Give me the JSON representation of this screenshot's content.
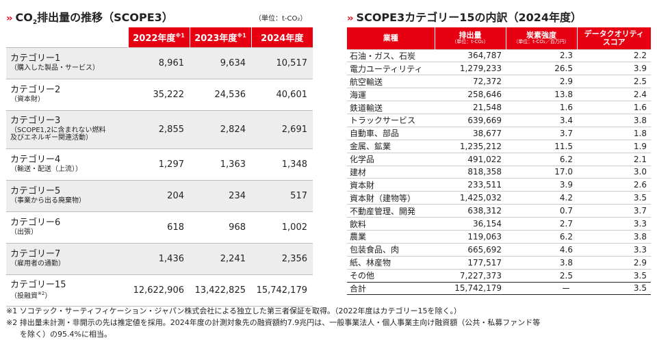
{
  "left": {
    "title_prefix": "CO",
    "title_sub": "2",
    "title_rest": "排出量の推移（SCOPE3）",
    "unit": "（単位：t-CO₂）",
    "headers": [
      {
        "label": "2022年度",
        "sup": "※1"
      },
      {
        "label": "2023年度",
        "sup": "※1"
      },
      {
        "label": "2024年度",
        "sup": ""
      }
    ],
    "rows": [
      {
        "label": "カテゴリー1",
        "sub": "（購入した製品・サービス）",
        "values": [
          "8,961",
          "9,634",
          "10,517"
        ]
      },
      {
        "label": "カテゴリー2",
        "sub": "（資本財）",
        "values": [
          "35,222",
          "24,536",
          "40,601"
        ]
      },
      {
        "label": "カテゴリー3",
        "sub": "（SCOPE1,2に含まれない燃料",
        "sub2": "及びエネルギー関連活動）",
        "values": [
          "2,855",
          "2,824",
          "2,691"
        ]
      },
      {
        "label": "カテゴリー4",
        "sub": "（輸送・配送（上流））",
        "values": [
          "1,297",
          "1,363",
          "1,348"
        ]
      },
      {
        "label": "カテゴリー5",
        "sub": "（事業から出る廃棄物）",
        "values": [
          "204",
          "234",
          "517"
        ]
      },
      {
        "label": "カテゴリー6",
        "sub": "（出張）",
        "values": [
          "618",
          "968",
          "1,002"
        ]
      },
      {
        "label": "カテゴリー7",
        "sub": "（雇用者の通勤）",
        "values": [
          "1,436",
          "2,241",
          "2,356"
        ]
      },
      {
        "label": "カテゴリー15",
        "sub": "（投融資",
        "sub_sup": "※2",
        "sub_end": "）",
        "values": [
          "12,622,906",
          "13,422,825",
          "15,742,179"
        ]
      }
    ]
  },
  "right": {
    "title": "SCOPE3カテゴリー15の内訳（2024年度）",
    "headers": [
      {
        "label": "業種",
        "sub": ""
      },
      {
        "label": "排出量",
        "sub": "（単位：t-CO₂）"
      },
      {
        "label": "炭素強度",
        "sub": "（単位：t-CO₂／百万円）"
      },
      {
        "label": "データクオリティ",
        "sub": "",
        "label2": "スコア"
      }
    ],
    "rows": [
      [
        "石油・ガス、石炭",
        "364,787",
        "2.3",
        "2.2"
      ],
      [
        "電力ユーティリティ",
        "1,279,233",
        "26.5",
        "3.9"
      ],
      [
        "航空輸送",
        "72,372",
        "2.9",
        "2.5"
      ],
      [
        "海運",
        "258,646",
        "13.8",
        "2.4"
      ],
      [
        "鉄道輸送",
        "21,548",
        "1.6",
        "1.6"
      ],
      [
        "トラックサービス",
        "639,669",
        "3.4",
        "3.8"
      ],
      [
        "自動車、部品",
        "38,677",
        "3.7",
        "1.8"
      ],
      [
        "金属、鉱業",
        "1,235,212",
        "11.5",
        "1.9"
      ],
      [
        "化学品",
        "491,022",
        "6.2",
        "2.1"
      ],
      [
        "建材",
        "818,358",
        "17.0",
        "3.0"
      ],
      [
        "資本財",
        "233,511",
        "3.9",
        "2.6"
      ],
      [
        "資本財（建物等）",
        "1,425,032",
        "4.2",
        "3.5"
      ],
      [
        "不動産管理、開発",
        "638,312",
        "0.7",
        "3.7"
      ],
      [
        "飲料",
        "36,154",
        "2.7",
        "3.3"
      ],
      [
        "農業",
        "119,063",
        "6.2",
        "3.8"
      ],
      [
        "包装食品、肉",
        "665,692",
        "4.6",
        "3.3"
      ],
      [
        "紙、林産物",
        "177,517",
        "3.8",
        "2.9"
      ],
      [
        "その他",
        "7,227,373",
        "2.5",
        "3.5"
      ]
    ],
    "total": [
      "合計",
      "15,742,179",
      "ー",
      "3.5"
    ]
  },
  "notes": {
    "note1": "※1 ソコテック・サーティフィケーション・ジャパン株式会社による独立した第三者保証を取得。（2022年度はカテゴリー15を除く。）",
    "note2a": "※2 排出量未計測・非開示の先は推定値を採用。2024年度の計測対象先の融資額約7.9兆円は、一般事業法人・個人事業主向け融資額（公共・私募ファンド等",
    "note2b": "を除く）の95.4%に相当。"
  }
}
